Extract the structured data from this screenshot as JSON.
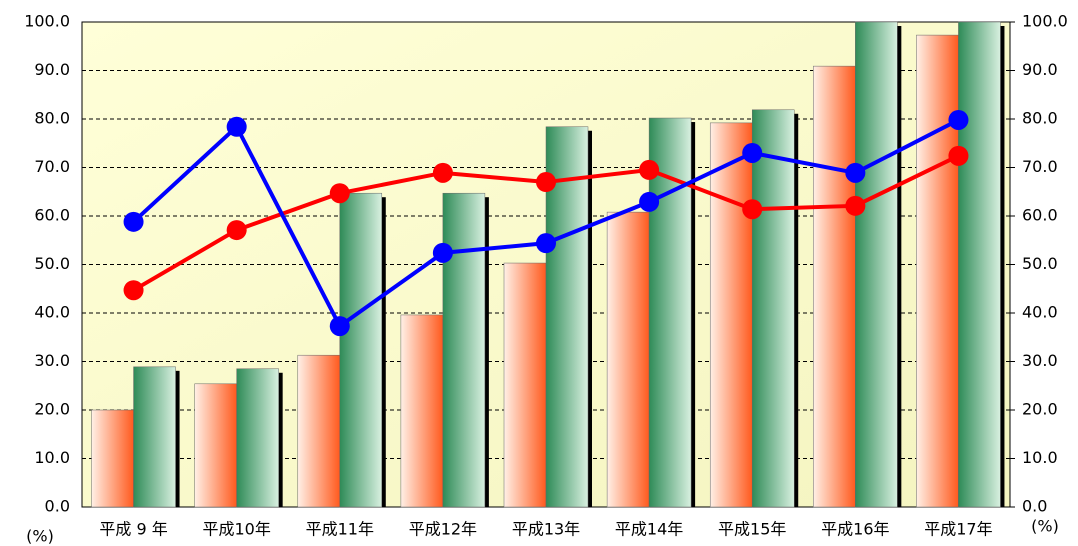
{
  "chart_data": {
    "type": "bar_line",
    "categories": [
      "平成 9 年",
      "平成10年",
      "平成11年",
      "平成12年",
      "平成13年",
      "平成14年",
      "平成15年",
      "平成16年",
      "平成17年"
    ],
    "series": [
      {
        "type": "bar",
        "color": "#ff5a1e",
        "values": [
          20.0,
          25.4,
          31.3,
          39.6,
          50.3,
          60.8,
          79.2,
          90.9,
          97.3
        ]
      },
      {
        "type": "bar",
        "color": "#2e8b57",
        "values": [
          28.9,
          28.5,
          64.7,
          64.7,
          78.4,
          80.2,
          81.9,
          100.0,
          100.0
        ]
      },
      {
        "type": "line",
        "axis": "y2",
        "color": "#ff0000",
        "values": [
          44.7,
          57.1,
          64.7,
          68.9,
          67.0,
          69.5,
          61.4,
          62.1,
          72.4
        ]
      },
      {
        "type": "line",
        "axis": "y2",
        "color": "#0000ff",
        "values": [
          58.8,
          78.4,
          37.3,
          52.4,
          54.4,
          62.9,
          73.0,
          68.9,
          79.8
        ]
      }
    ],
    "y_label": "(%)",
    "y2_label": "(%)",
    "ylim": [
      0,
      100
    ],
    "y2lim": [
      0,
      100
    ],
    "yticks": [
      {
        "value": 0,
        "label": "0.0"
      },
      {
        "value": 10,
        "label": "10.0"
      },
      {
        "value": 20,
        "label": "20.0"
      },
      {
        "value": 30,
        "label": "30.0"
      },
      {
        "value": 40,
        "label": "40.0"
      },
      {
        "value": 50,
        "label": "50.0"
      },
      {
        "value": 60,
        "label": "60.0"
      },
      {
        "value": 70,
        "label": "70.0"
      },
      {
        "value": 80,
        "label": "80.0"
      },
      {
        "value": 90,
        "label": "90.0"
      },
      {
        "value": 100,
        "label": "100.0"
      }
    ],
    "y2ticks": [
      {
        "value": 0,
        "label": "0.0"
      },
      {
        "value": 10,
        "label": "10.0"
      },
      {
        "value": 20,
        "label": "20.0"
      },
      {
        "value": 30,
        "label": "30.0"
      },
      {
        "value": 40,
        "label": "40.0"
      },
      {
        "value": 50,
        "label": "50.0"
      },
      {
        "value": 60,
        "label": "60.0"
      },
      {
        "value": 70,
        "label": "70.0"
      },
      {
        "value": 80,
        "label": "80.0"
      },
      {
        "value": 90,
        "label": "90.0"
      },
      {
        "value": 100,
        "label": "100.0"
      }
    ],
    "grid": true
  }
}
